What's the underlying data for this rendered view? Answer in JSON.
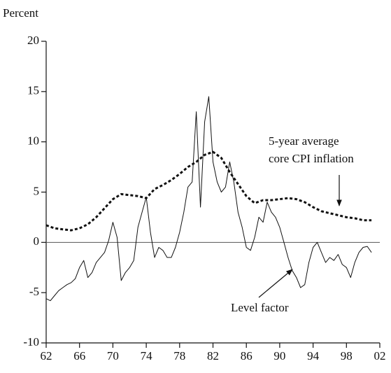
{
  "chart_data": {
    "type": "line",
    "y_label": "Percent",
    "xlim": [
      1962,
      2002
    ],
    "xticks": [
      {
        "value": 1962,
        "label": "62"
      },
      {
        "value": 1966,
        "label": "66"
      },
      {
        "value": 1970,
        "label": "70"
      },
      {
        "value": 1974,
        "label": "74"
      },
      {
        "value": 1978,
        "label": "78"
      },
      {
        "value": 1982,
        "label": "82"
      },
      {
        "value": 1986,
        "label": "86"
      },
      {
        "value": 1990,
        "label": "90"
      },
      {
        "value": 1994,
        "label": "94"
      },
      {
        "value": 1998,
        "label": "98"
      },
      {
        "value": 2002,
        "label": "02"
      }
    ],
    "ylim": [
      -10,
      20
    ],
    "yticks": [
      -10,
      -5,
      0,
      5,
      10,
      15,
      20
    ],
    "reference_line": 0,
    "series": [
      {
        "name": "Level factor",
        "color": "#111111",
        "dash": false,
        "x": [
          1962,
          1962.5,
          1963,
          1963.5,
          1964,
          1964.5,
          1965,
          1965.5,
          1966,
          1966.5,
          1967,
          1967.5,
          1968,
          1968.5,
          1969,
          1969.5,
          1970,
          1970.5,
          1971,
          1971.5,
          1972,
          1972.5,
          1973,
          1973.5,
          1974,
          1974.5,
          1975,
          1975.5,
          1976,
          1976.5,
          1977,
          1977.5,
          1978,
          1978.5,
          1979,
          1979.5,
          1980,
          1980.5,
          1981,
          1981.5,
          1982,
          1982.5,
          1983,
          1983.5,
          1984,
          1984.5,
          1985,
          1985.5,
          1986,
          1986.5,
          1987,
          1987.5,
          1988,
          1988.5,
          1989,
          1989.5,
          1990,
          1990.5,
          1991,
          1991.5,
          1992,
          1992.5,
          1993,
          1993.5,
          1994,
          1994.5,
          1995,
          1995.5,
          1996,
          1996.5,
          1997,
          1997.5,
          1998,
          1998.5,
          1999,
          1999.5,
          2000,
          2000.5,
          2001
        ],
        "values": [
          -5.6,
          -5.8,
          -5.3,
          -4.8,
          -4.5,
          -4.2,
          -4.0,
          -3.6,
          -2.5,
          -1.8,
          -3.5,
          -3.0,
          -2.0,
          -1.5,
          -1.0,
          0.2,
          2.0,
          0.5,
          -3.8,
          -3.0,
          -2.5,
          -1.8,
          1.5,
          3.0,
          4.5,
          1.0,
          -1.5,
          -0.5,
          -0.8,
          -1.5,
          -1.5,
          -0.5,
          1.0,
          3.0,
          5.5,
          6.0,
          13.0,
          3.5,
          12.0,
          14.5,
          8.0,
          6.0,
          5.0,
          5.5,
          8.0,
          6.0,
          3.0,
          1.5,
          -0.5,
          -0.8,
          0.5,
          2.5,
          2.0,
          4.0,
          3.0,
          2.5,
          1.5,
          0.0,
          -1.5,
          -2.8,
          -3.5,
          -4.5,
          -4.2,
          -2.0,
          -0.5,
          0.0,
          -1.0,
          -2.0,
          -1.5,
          -1.8,
          -1.2,
          -2.2,
          -2.5,
          -3.5,
          -2.0,
          -1.0,
          -0.5,
          -0.4,
          -1.0
        ]
      },
      {
        "name": "5-year average core CPI inflation",
        "color": "#111111",
        "dash": true,
        "x": [
          1962,
          1963,
          1964,
          1965,
          1966,
          1967,
          1968,
          1969,
          1970,
          1971,
          1972,
          1973,
          1974,
          1975,
          1976,
          1977,
          1978,
          1979,
          1980,
          1981,
          1982,
          1983,
          1984,
          1985,
          1986,
          1987,
          1988,
          1989,
          1990,
          1991,
          1992,
          1993,
          1994,
          1995,
          1996,
          1997,
          1998,
          1999,
          2000,
          2001
        ],
        "values": [
          1.7,
          1.4,
          1.3,
          1.2,
          1.4,
          1.8,
          2.5,
          3.4,
          4.3,
          4.8,
          4.7,
          4.6,
          4.4,
          5.3,
          5.7,
          6.2,
          6.8,
          7.5,
          8.0,
          8.7,
          9.0,
          8.4,
          7.0,
          5.8,
          4.6,
          3.9,
          4.2,
          4.2,
          4.3,
          4.4,
          4.3,
          4.0,
          3.5,
          3.1,
          2.9,
          2.7,
          2.5,
          2.4,
          2.2,
          2.2
        ]
      }
    ],
    "annotations": [
      {
        "lines": [
          "5-year average",
          "core CPI inflation"
        ]
      },
      {
        "lines": [
          "Level factor"
        ]
      }
    ]
  }
}
